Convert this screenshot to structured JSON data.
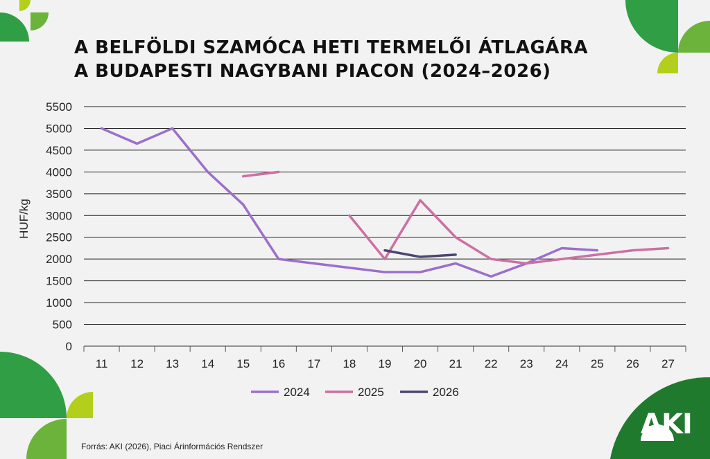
{
  "title_line1": "A BELFÖLDI SZAMÓCA HETI TERMELŐI ÁTLAGÁRA",
  "title_line2": "A BUDAPESTI NAGYBANI PIACON (2024–2026)",
  "source": "Forrás: AKI (2026), Piaci Árinformációs Rendszer",
  "logo": "AKI",
  "colors": {
    "s2024": "#9b6fcb",
    "s2025": "#cc6fa3",
    "s2026": "#4a4670",
    "green_dark": "#1f7a2e",
    "green": "#2f9e44",
    "green_mid": "#6bb33a",
    "lime": "#b3cf1c"
  },
  "chart_data": {
    "type": "line",
    "title": "A BELFÖLDI SZAMÓCA HETI TERMELŐI ÁTLAGÁRA A BUDAPESTI NAGYBANI PIACON (2024–2026)",
    "xlabel": "",
    "ylabel": "HUF/kg",
    "ylim": [
      0,
      5500
    ],
    "yticks": [
      0,
      500,
      1000,
      1500,
      2000,
      2500,
      3000,
      3500,
      4000,
      4500,
      5000,
      5500
    ],
    "categories": [
      "11",
      "12",
      "13",
      "14",
      "15",
      "16",
      "17",
      "18",
      "19",
      "20",
      "21",
      "22",
      "23",
      "24",
      "25",
      "26",
      "27"
    ],
    "grid": true,
    "legend_position": "bottom",
    "series": [
      {
        "name": "2024",
        "values": [
          5000,
          4650,
          5000,
          4000,
          3250,
          2000,
          1900,
          1800,
          1700,
          1700,
          1900,
          1600,
          1900,
          2250,
          2200,
          null,
          null
        ]
      },
      {
        "name": "2025",
        "values": [
          null,
          null,
          null,
          null,
          3900,
          4000,
          null,
          3000,
          2000,
          3350,
          2500,
          2000,
          1900,
          2000,
          2100,
          2200,
          2250
        ]
      },
      {
        "name": "2026",
        "values": [
          null,
          null,
          null,
          null,
          null,
          null,
          null,
          null,
          2200,
          2050,
          2100,
          null,
          null,
          null,
          null,
          null,
          null
        ]
      }
    ]
  }
}
